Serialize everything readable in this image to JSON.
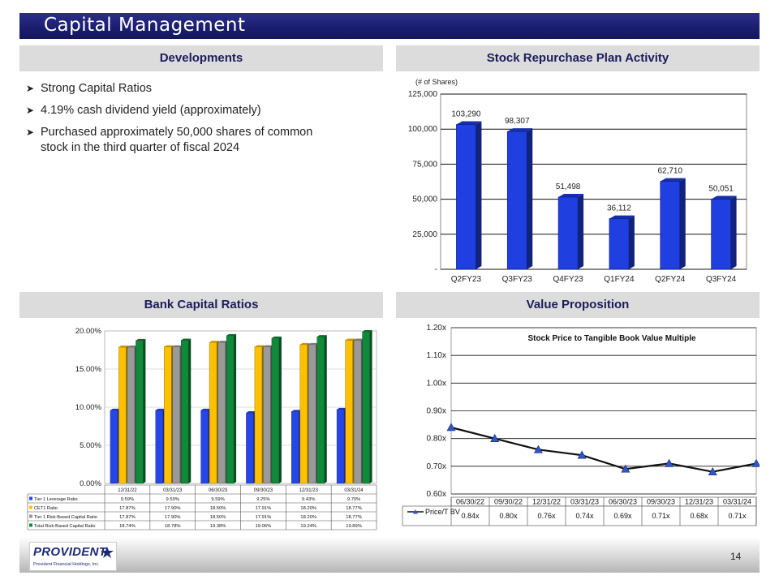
{
  "title": "Capital Management",
  "page_number": "14",
  "logo": {
    "name": "PROVIDENT",
    "subtitle": "Provident Financial Holdings, Inc."
  },
  "sections": {
    "developments": "Developments",
    "repurchase": "Stock Repurchase Plan Activity",
    "ratios": "Bank Capital Ratios",
    "value": "Value Proposition"
  },
  "developments": [
    {
      "line1": "Strong Capital Ratios",
      "line2": ""
    },
    {
      "line1": " 4.19% cash dividend yield (approximately)",
      "line2": ""
    },
    {
      "line1": "Purchased approximately 50,000 shares of common",
      "line2": "stock in the third quarter of fiscal 2024"
    }
  ],
  "colors": {
    "header_bg": "#dcdcdc",
    "title_bar": "#1a1d6e",
    "bar_blue": "#1f3fe0"
  },
  "chart_data": [
    {
      "type": "bar",
      "name": "stock-repurchase",
      "title": "Stock Repurchase Plan Activity",
      "ylabel": "(# of Shares)",
      "categories": [
        "Q2FY23",
        "Q3FY23",
        "Q4FY23",
        "Q1FY24",
        "Q2FY24",
        "Q3FY24"
      ],
      "values": [
        103290,
        98307,
        51498,
        36112,
        62710,
        50051
      ],
      "value_labels": [
        "103,290",
        "98,307",
        "51,498",
        "36,112",
        "62,710",
        "50,051"
      ],
      "ylim": [
        0,
        125000
      ],
      "yticks": [
        0,
        25000,
        50000,
        75000,
        100000,
        125000
      ],
      "ytick_labels": [
        "-",
        "25,000",
        "50,000",
        "75,000",
        "100,000",
        "125,000"
      ]
    },
    {
      "type": "bar",
      "name": "bank-capital-ratios",
      "title": "Bank Capital Ratios",
      "categories": [
        "12/31/22",
        "03/31/23",
        "06/30/23",
        "09/30/23",
        "12/31/23",
        "03/31/24"
      ],
      "series": [
        {
          "name": "Tier 1 Leverage Ratio",
          "color": "#2646e8",
          "values": [
            9.59,
            9.59,
            9.59,
            9.25,
            9.43,
            9.7
          ],
          "labels": [
            "9.59%",
            "9.59%",
            "9.59%",
            "9.25%",
            "9.43%",
            "9.70%"
          ]
        },
        {
          "name": "CET1 Ratio",
          "color": "#ffc000",
          "values": [
            17.87,
            17.9,
            18.5,
            17.91,
            18.2,
            18.77
          ],
          "labels": [
            "17.87%",
            "17.90%",
            "18.50%",
            "17.91%",
            "18.20%",
            "18.77%"
          ]
        },
        {
          "name": "Tier 1 Risk-Based Capital Ratio",
          "color": "#9a9a9a",
          "values": [
            17.87,
            17.9,
            18.5,
            17.91,
            18.2,
            18.77
          ],
          "labels": [
            "17.87%",
            "17.90%",
            "18.50%",
            "17.91%",
            "18.20%",
            "18.77%"
          ]
        },
        {
          "name": "Total Risk-Based Capital Ratio",
          "color": "#0e8a3a",
          "values": [
            18.74,
            18.78,
            19.38,
            19.06,
            19.24,
            19.89
          ],
          "labels": [
            "18.74%",
            "18.78%",
            "19.38%",
            "19.06%",
            "19.24%",
            "19.89%"
          ]
        }
      ],
      "ylim": [
        0,
        20
      ],
      "yticks": [
        0,
        5,
        10,
        15,
        20
      ],
      "ytick_labels": [
        "0.00%",
        "5.00%",
        "10.00%",
        "15.00%",
        "20.00%"
      ]
    },
    {
      "type": "line",
      "name": "value-proposition",
      "title": "Stock Price to Tangible Book Value Multiple",
      "categories": [
        "06/30/22",
        "09/30/22",
        "12/31/22",
        "03/31/23",
        "06/30/23",
        "09/30/23",
        "12/31/23",
        "03/31/24"
      ],
      "series": [
        {
          "name": "Price/T BV",
          "values": [
            0.84,
            0.8,
            0.76,
            0.74,
            0.69,
            0.71,
            0.68,
            0.71
          ],
          "labels": [
            "0.84x",
            "0.80x",
            "0.76x",
            "0.74x",
            "0.69x",
            "0.71x",
            "0.68x",
            "0.71x"
          ]
        }
      ],
      "ylim": [
        0.6,
        1.2
      ],
      "yticks": [
        0.6,
        0.7,
        0.8,
        0.9,
        1.0,
        1.1,
        1.2
      ],
      "ytick_labels": [
        "0.60x",
        "0.70x",
        "0.80x",
        "0.90x",
        "1.00x",
        "1.10x",
        "1.20x"
      ]
    }
  ]
}
